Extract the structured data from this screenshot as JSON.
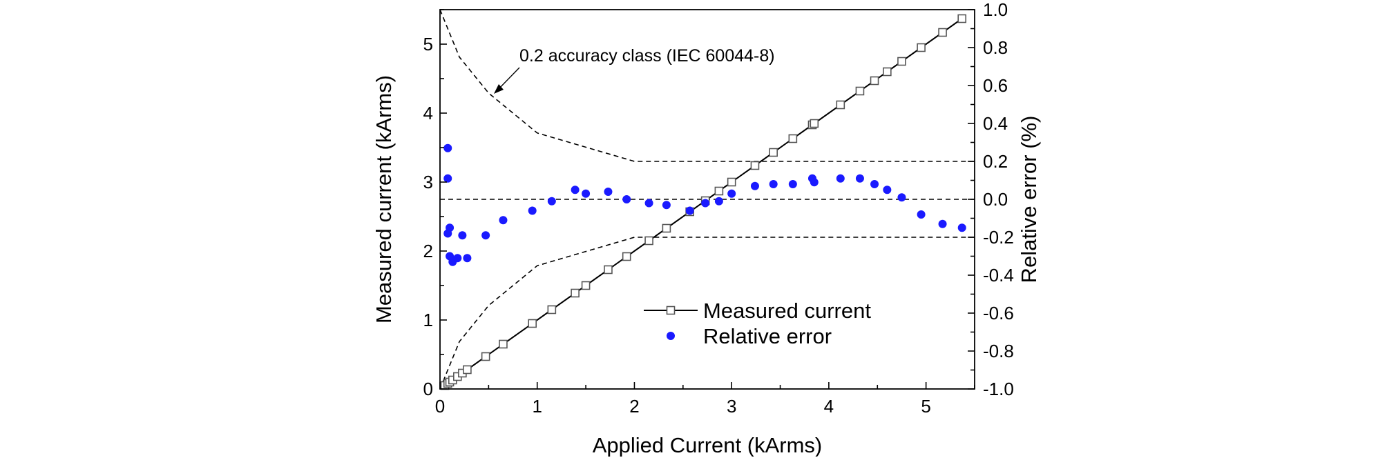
{
  "chart_data": {
    "type": "line",
    "xlabel": "Applied Current (kArms)",
    "ylabel_left": "Measured current (kArms)",
    "ylabel_right": "Relative error (%)",
    "xlim": [
      0,
      5.5
    ],
    "ylim_left": [
      0,
      5.5
    ],
    "ylim_right": [
      -1.0,
      1.0
    ],
    "x_ticks": [
      "0",
      "1",
      "2",
      "3",
      "4",
      "5"
    ],
    "y_left_ticks": [
      "0",
      "1",
      "2",
      "3",
      "4",
      "5"
    ],
    "y_right_ticks": [
      "-1.0",
      "-0.8",
      "-0.6",
      "-0.4",
      "-0.2",
      "0.0",
      "0.2",
      "0.4",
      "0.6",
      "0.8",
      "1.0"
    ],
    "grid": false,
    "legend_position": "bottom-right",
    "annotation": {
      "text": "0.2 accuracy class (IEC 60044-8)"
    },
    "series": [
      {
        "name": "Measured current",
        "axis": "left",
        "style": "line-open-square",
        "color": "#000000",
        "x": [
          0.05,
          0.08,
          0.1,
          0.13,
          0.18,
          0.23,
          0.28,
          0.47,
          0.65,
          0.95,
          1.15,
          1.39,
          1.5,
          1.73,
          1.92,
          2.15,
          2.33,
          2.57,
          2.73,
          2.87,
          3.0,
          3.24,
          3.43,
          3.63,
          3.83,
          3.85,
          4.12,
          4.32,
          4.47,
          4.6,
          4.75,
          4.95,
          5.17,
          5.37
        ],
        "y": [
          0.05,
          0.08,
          0.1,
          0.13,
          0.18,
          0.23,
          0.28,
          0.47,
          0.65,
          0.95,
          1.15,
          1.39,
          1.5,
          1.73,
          1.92,
          2.15,
          2.33,
          2.57,
          2.73,
          2.87,
          3.0,
          3.24,
          3.43,
          3.63,
          3.83,
          3.85,
          4.12,
          4.32,
          4.47,
          4.6,
          4.75,
          4.95,
          5.17,
          5.37
        ]
      },
      {
        "name": "Relative error",
        "axis": "right",
        "style": "scatter-filled-circle",
        "color": "#1a1aff",
        "x": [
          0.08,
          0.08,
          0.08,
          0.1,
          0.1,
          0.13,
          0.18,
          0.23,
          0.28,
          0.47,
          0.65,
          0.95,
          1.15,
          1.39,
          1.5,
          1.73,
          1.92,
          2.15,
          2.33,
          2.57,
          2.73,
          2.87,
          3.0,
          3.24,
          3.43,
          3.63,
          3.83,
          3.85,
          4.12,
          4.32,
          4.47,
          4.6,
          4.75,
          4.95,
          5.17,
          5.37
        ],
        "y": [
          0.27,
          0.11,
          -0.18,
          -0.3,
          -0.15,
          -0.33,
          -0.31,
          -0.19,
          -0.31,
          -0.19,
          -0.11,
          -0.06,
          -0.01,
          0.05,
          0.03,
          0.04,
          0.0,
          -0.02,
          -0.03,
          -0.06,
          -0.02,
          -0.01,
          0.03,
          0.07,
          0.08,
          0.08,
          0.11,
          0.09,
          0.11,
          0.11,
          0.08,
          0.05,
          0.01,
          -0.08,
          -0.13,
          -0.15
        ]
      }
    ],
    "reference_lines": [
      {
        "axis": "right",
        "style": "dashed",
        "label": "upper accuracy limit",
        "x": [
          0.0,
          0.2,
          0.5,
          1.0,
          2.0,
          5.5
        ],
        "y": [
          1.0,
          0.75,
          0.56,
          0.35,
          0.2,
          0.2
        ]
      },
      {
        "axis": "right",
        "style": "dashed",
        "label": "lower accuracy limit",
        "x": [
          0.0,
          0.2,
          0.5,
          1.0,
          2.0,
          5.5
        ],
        "y": [
          -1.0,
          -0.75,
          -0.56,
          -0.35,
          -0.2,
          -0.2
        ]
      },
      {
        "axis": "right",
        "style": "dashed",
        "label": "zero error",
        "x": [
          0.0,
          5.5
        ],
        "y": [
          0.0,
          0.0
        ]
      }
    ]
  }
}
